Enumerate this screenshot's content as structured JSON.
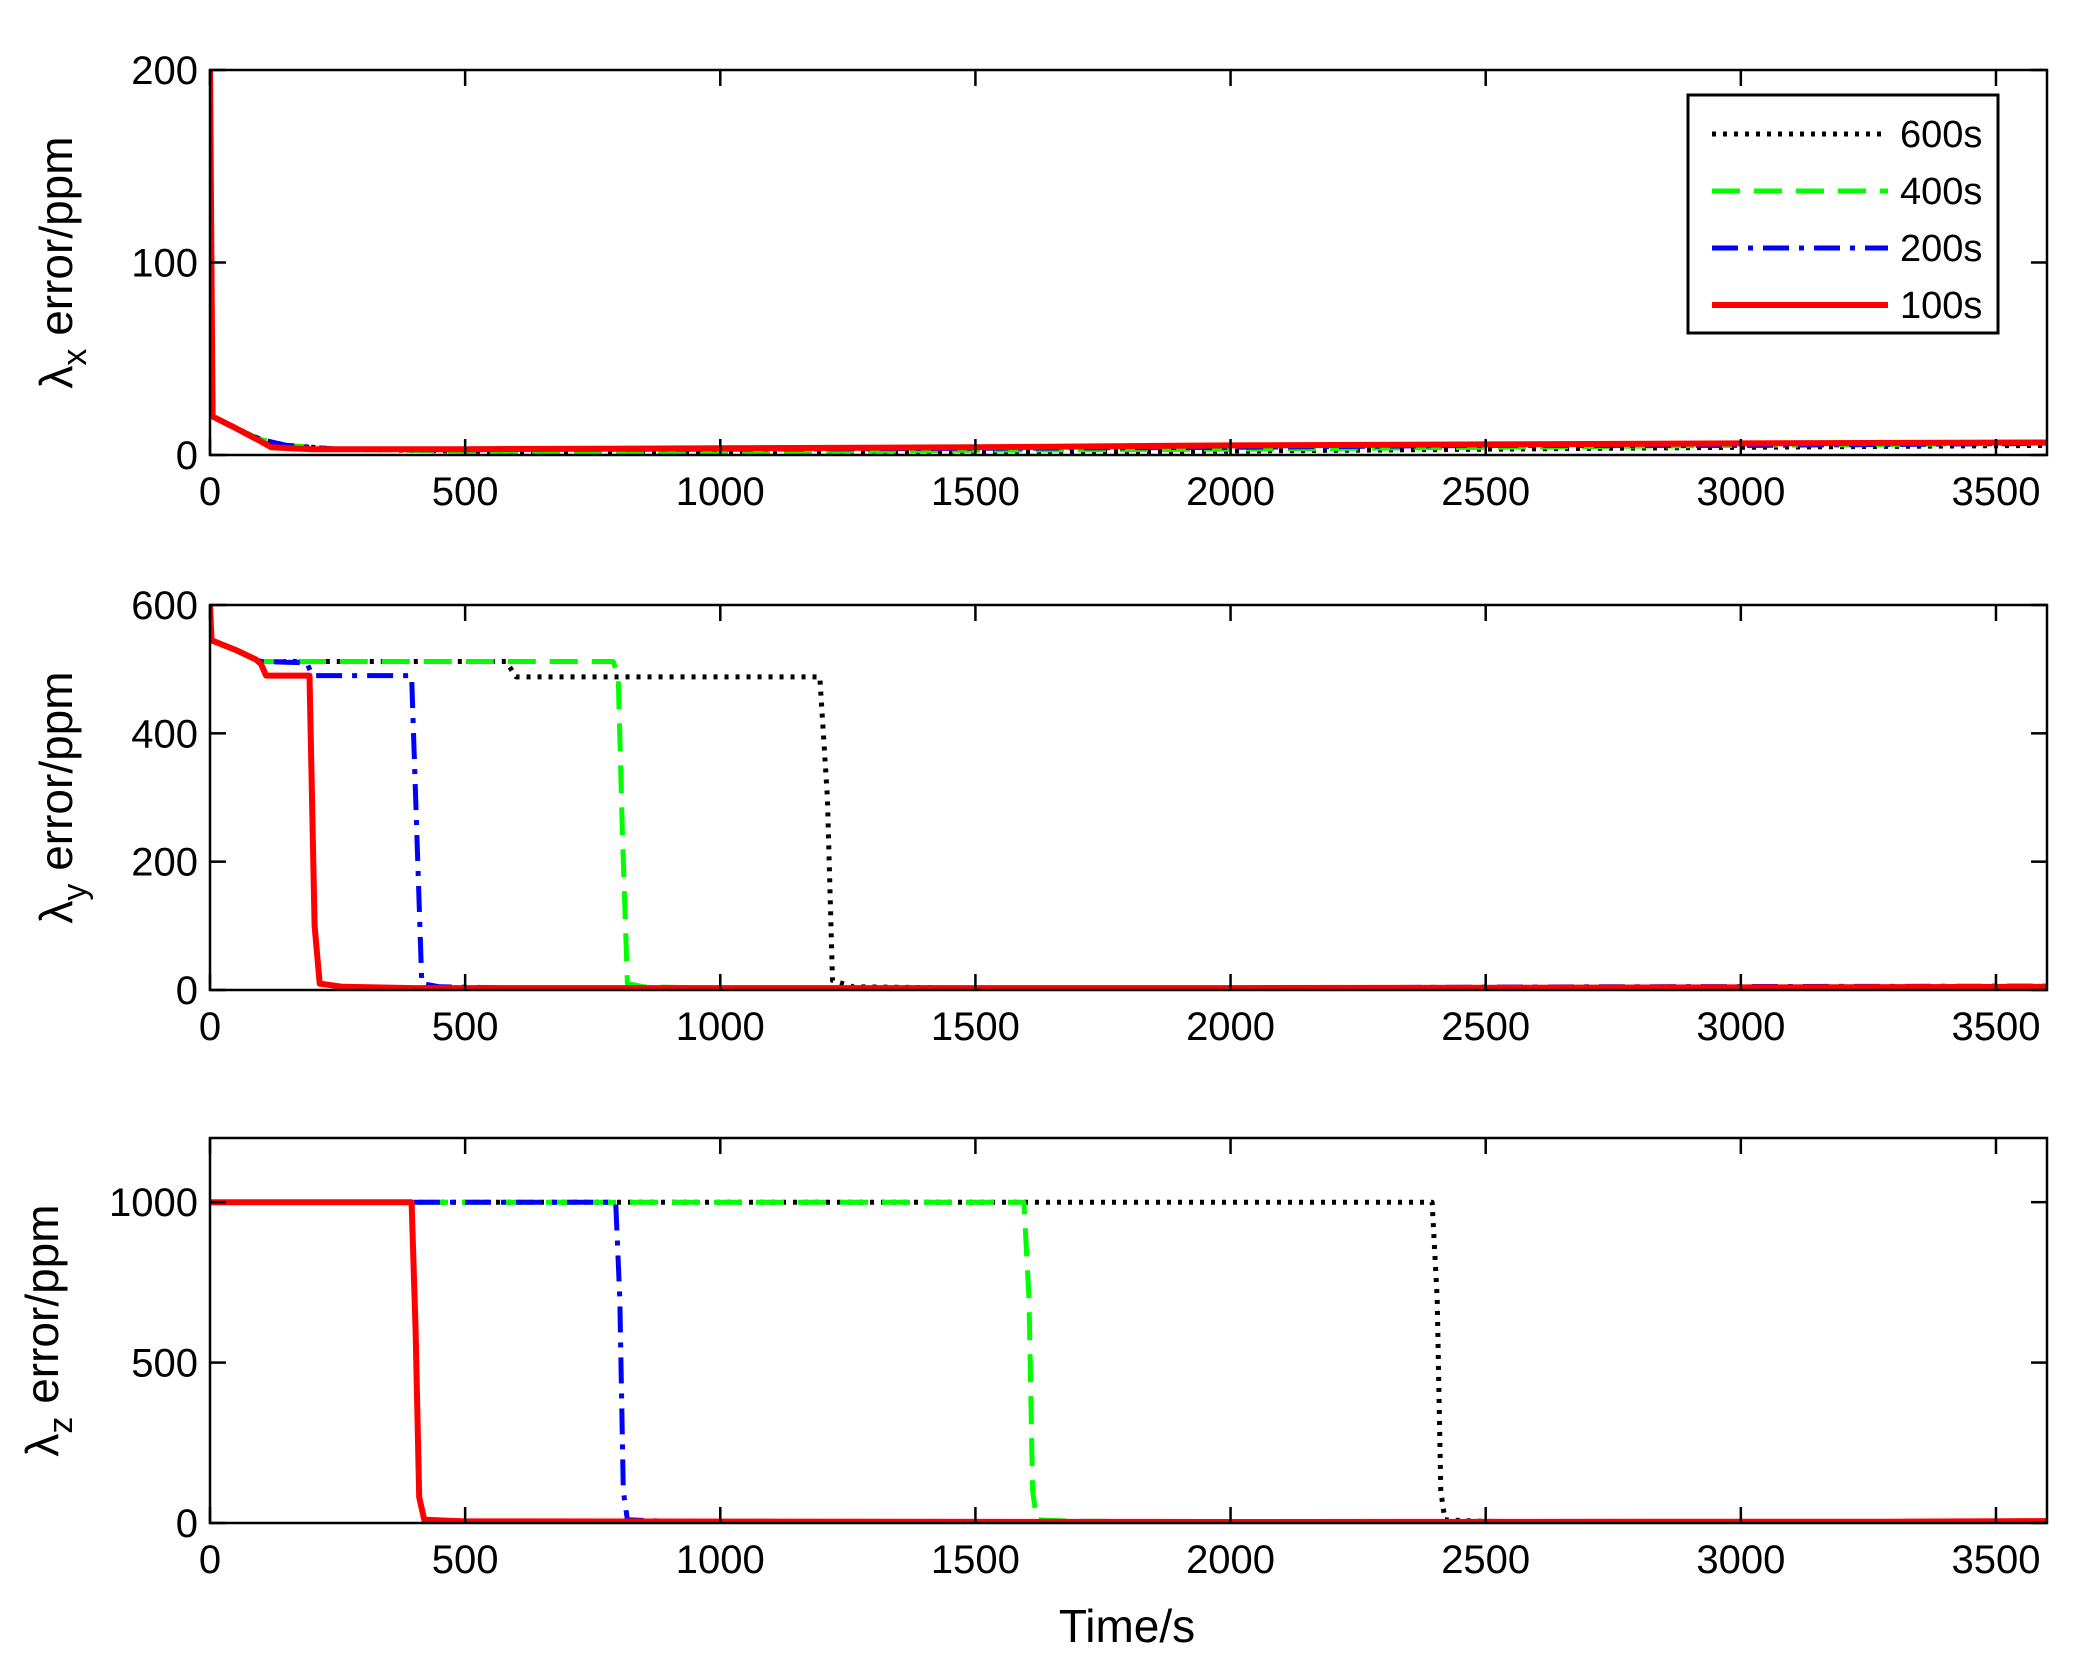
{
  "figure": {
    "xlabel": "Time/s"
  },
  "legend": {
    "placement": "top-right",
    "entries": [
      {
        "label": "600s",
        "color": "#000000",
        "style": "dotted"
      },
      {
        "label": "400s",
        "color": "#00ff00",
        "style": "dashed"
      },
      {
        "label": "200s",
        "color": "#0000ff",
        "style": "dashdot"
      },
      {
        "label": "100s",
        "color": "#ff0000",
        "style": "solid"
      }
    ]
  },
  "chart_data": [
    {
      "type": "line",
      "ylabel_symbol": "λ",
      "ylabel_sub": "x",
      "ylabel_rest": " error/ppm",
      "xlim": [
        0,
        3600
      ],
      "ylim": [
        0,
        200
      ],
      "xticks": [
        0,
        500,
        1000,
        1500,
        2000,
        2500,
        3000,
        3500
      ],
      "yticks": [
        0,
        100,
        200
      ],
      "grid": false,
      "series": [
        {
          "name": "600s",
          "color": "#000000",
          "style": "dotted",
          "points": [
            [
              0,
              200
            ],
            [
              5,
              20
            ],
            [
              50,
              14
            ],
            [
              100,
              8
            ],
            [
              150,
              5
            ],
            [
              250,
              3
            ],
            [
              500,
              2
            ],
            [
              1000,
              1
            ],
            [
              1500,
              1.5
            ],
            [
              2000,
              2
            ],
            [
              2500,
              3
            ],
            [
              3000,
              4
            ],
            [
              3600,
              5
            ]
          ]
        },
        {
          "name": "400s",
          "color": "#00ff00",
          "style": "dashed",
          "points": [
            [
              0,
              200
            ],
            [
              5,
              20
            ],
            [
              50,
              14
            ],
            [
              100,
              8
            ],
            [
              150,
              5
            ],
            [
              250,
              3
            ],
            [
              500,
              2
            ],
            [
              1000,
              1.5
            ],
            [
              1500,
              2.5
            ],
            [
              2000,
              3
            ],
            [
              2500,
              4
            ],
            [
              3000,
              5
            ],
            [
              3600,
              6
            ]
          ]
        },
        {
          "name": "200s",
          "color": "#0000ff",
          "style": "dashdot",
          "points": [
            [
              0,
              200
            ],
            [
              5,
              20
            ],
            [
              50,
              14
            ],
            [
              100,
              8
            ],
            [
              150,
              5
            ],
            [
              250,
              3
            ],
            [
              500,
              3
            ],
            [
              1000,
              3
            ],
            [
              1500,
              3.5
            ],
            [
              2000,
              4
            ],
            [
              2500,
              5
            ],
            [
              3000,
              5
            ],
            [
              3600,
              6
            ]
          ]
        },
        {
          "name": "100s",
          "color": "#ff0000",
          "style": "solid",
          "points": [
            [
              0,
              200
            ],
            [
              5,
              20
            ],
            [
              50,
              14
            ],
            [
              100,
              7
            ],
            [
              120,
              4
            ],
            [
              200,
              3
            ],
            [
              500,
              3
            ],
            [
              1000,
              3.5
            ],
            [
              1500,
              4
            ],
            [
              2000,
              5
            ],
            [
              2500,
              5.5
            ],
            [
              3000,
              6
            ],
            [
              3600,
              6.5
            ]
          ]
        }
      ]
    },
    {
      "type": "line",
      "ylabel_symbol": "λ",
      "ylabel_sub": "y",
      "ylabel_rest": " error/ppm",
      "xlim": [
        0,
        3600
      ],
      "ylim": [
        0,
        600
      ],
      "xticks": [
        0,
        500,
        1000,
        1500,
        2000,
        2500,
        3000,
        3500
      ],
      "yticks": [
        0,
        200,
        400,
        600
      ],
      "grid": false,
      "series": [
        {
          "name": "600s",
          "color": "#000000",
          "style": "dotted",
          "points": [
            [
              0,
              600
            ],
            [
              3,
              545
            ],
            [
              50,
              530
            ],
            [
              100,
              512
            ],
            [
              580,
              512
            ],
            [
              600,
              488
            ],
            [
              1195,
              488
            ],
            [
              1210,
              300
            ],
            [
              1220,
              15
            ],
            [
              1260,
              5
            ],
            [
              1500,
              3
            ],
            [
              2000,
              3
            ],
            [
              2500,
              3
            ],
            [
              3000,
              3
            ],
            [
              3600,
              3
            ]
          ]
        },
        {
          "name": "400s",
          "color": "#00ff00",
          "style": "dashed",
          "points": [
            [
              0,
              600
            ],
            [
              3,
              545
            ],
            [
              50,
              530
            ],
            [
              100,
              512
            ],
            [
              790,
              512
            ],
            [
              800,
              490
            ],
            [
              808,
              250
            ],
            [
              818,
              10
            ],
            [
              850,
              5
            ],
            [
              1000,
              3
            ],
            [
              2000,
              3
            ],
            [
              3000,
              3
            ],
            [
              3600,
              3
            ]
          ]
        },
        {
          "name": "200s",
          "color": "#0000ff",
          "style": "dashdot",
          "points": [
            [
              0,
              600
            ],
            [
              3,
              545
            ],
            [
              50,
              530
            ],
            [
              100,
              512
            ],
            [
              190,
              510
            ],
            [
              200,
              490
            ],
            [
              395,
              490
            ],
            [
              405,
              250
            ],
            [
              415,
              10
            ],
            [
              450,
              5
            ],
            [
              600,
              3
            ],
            [
              1000,
              3
            ],
            [
              2000,
              3
            ],
            [
              2700,
              5
            ],
            [
              3600,
              6
            ]
          ]
        },
        {
          "name": "100s",
          "color": "#ff0000",
          "style": "solid",
          "points": [
            [
              0,
              600
            ],
            [
              3,
              545
            ],
            [
              50,
              530
            ],
            [
              90,
              515
            ],
            [
              100,
              508
            ],
            [
              110,
              490
            ],
            [
              195,
              490
            ],
            [
              205,
              100
            ],
            [
              215,
              10
            ],
            [
              260,
              5
            ],
            [
              400,
              3
            ],
            [
              1000,
              3
            ],
            [
              2000,
              3
            ],
            [
              3000,
              4
            ],
            [
              3600,
              5
            ]
          ]
        }
      ]
    },
    {
      "type": "line",
      "ylabel_symbol": "λ",
      "ylabel_sub": "z",
      "ylabel_rest": " error/ppm",
      "xlim": [
        0,
        3600
      ],
      "ylim": [
        0,
        1200
      ],
      "xticks": [
        0,
        500,
        1000,
        1500,
        2000,
        2500,
        3000,
        3500
      ],
      "yticks": [
        0,
        500,
        1000
      ],
      "grid": false,
      "series": [
        {
          "name": "600s",
          "color": "#000000",
          "style": "dotted",
          "points": [
            [
              0,
              1000
            ],
            [
              2395,
              1000
            ],
            [
              2405,
              700
            ],
            [
              2412,
              100
            ],
            [
              2420,
              10
            ],
            [
              2500,
              5
            ],
            [
              3000,
              3
            ],
            [
              3600,
              3
            ]
          ]
        },
        {
          "name": "400s",
          "color": "#00ff00",
          "style": "dashed",
          "points": [
            [
              0,
              1000
            ],
            [
              1595,
              1000
            ],
            [
              1605,
              700
            ],
            [
              1612,
              100
            ],
            [
              1620,
              10
            ],
            [
              1700,
              5
            ],
            [
              3000,
              3
            ],
            [
              3600,
              3
            ]
          ]
        },
        {
          "name": "200s",
          "color": "#0000ff",
          "style": "dashdot",
          "points": [
            [
              0,
              1000
            ],
            [
              795,
              1000
            ],
            [
              803,
              700
            ],
            [
              810,
              100
            ],
            [
              818,
              10
            ],
            [
              900,
              5
            ],
            [
              2000,
              3
            ],
            [
              3000,
              3
            ],
            [
              3600,
              3
            ]
          ]
        },
        {
          "name": "100s",
          "color": "#ff0000",
          "style": "solid",
          "points": [
            [
              0,
              1000
            ],
            [
              395,
              1000
            ],
            [
              403,
              600
            ],
            [
              410,
              80
            ],
            [
              420,
              10
            ],
            [
              500,
              5
            ],
            [
              2000,
              3
            ],
            [
              3300,
              4
            ],
            [
              3600,
              6
            ]
          ]
        }
      ]
    }
  ]
}
